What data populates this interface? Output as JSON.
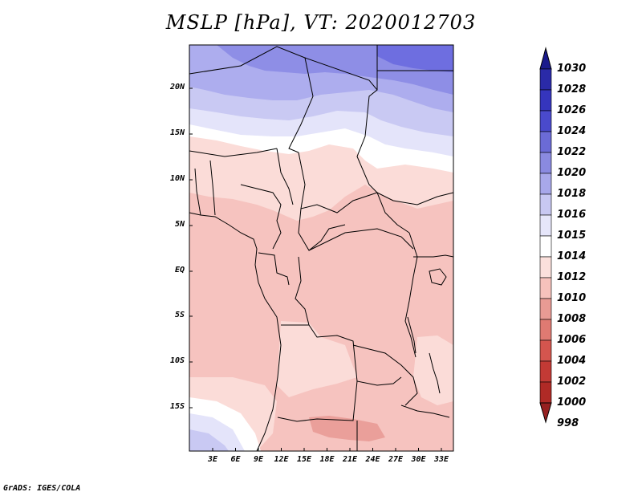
{
  "title": "MSLP [hPa], VT: 2020012703",
  "credit": "GrADS: IGES/COLA",
  "lat_labels": [
    "20N",
    "15N",
    "10N",
    "5N",
    "EQ",
    "5S",
    "10S",
    "15S"
  ],
  "lon_labels": [
    "3E",
    "6E",
    "9E",
    "12E",
    "15E",
    "18E",
    "21E",
    "24E",
    "27E",
    "30E",
    "33E"
  ],
  "colorbar": {
    "labels": [
      "1030",
      "1028",
      "1026",
      "1024",
      "1022",
      "1020",
      "1018",
      "1016",
      "1015",
      "1014",
      "1012",
      "1010",
      "1008",
      "1006",
      "1004",
      "1002",
      "1000",
      "998"
    ],
    "colors": [
      "#1a1a8c",
      "#2a2aa8",
      "#3535bd",
      "#4a4acc",
      "#6b6bd6",
      "#8a8ae0",
      "#a8a8ea",
      "#c8c8f2",
      "#e6e6fa",
      "#ffffff",
      "#fbe0dc",
      "#f6c2bc",
      "#e89b94",
      "#df7a72",
      "#d4554e",
      "#c33a35",
      "#b02a26",
      "#962020"
    ]
  },
  "colors": {
    "frame": "#000000",
    "fill_1024": "#6e6ee0",
    "fill_1020": "#8e8ee6",
    "fill_1018": "#adadee",
    "fill_1016": "#c9c9f3",
    "fill_1015": "#e4e4fa",
    "fill_1014": "#ffffff",
    "fill_1012": "#fbdcd8",
    "fill_1010": "#f6c3bf",
    "fill_1008": "#ea9f9a"
  }
}
